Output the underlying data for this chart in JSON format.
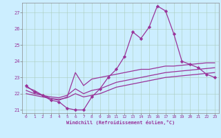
{
  "xlabel": "Windchill (Refroidissement éolien,°C)",
  "background_color": "#cceeff",
  "grid_color": "#aaccbb",
  "line_color": "#993399",
  "xlim_min": -0.5,
  "xlim_max": 23.5,
  "ylim_min": 20.8,
  "ylim_max": 27.6,
  "yticks": [
    21,
    22,
    23,
    24,
    25,
    26,
    27
  ],
  "xticks": [
    0,
    1,
    2,
    3,
    4,
    5,
    6,
    7,
    8,
    9,
    10,
    11,
    12,
    13,
    14,
    15,
    16,
    17,
    18,
    19,
    20,
    21,
    22,
    23
  ],
  "series1_x": [
    0,
    1,
    2,
    3,
    4,
    5,
    6,
    7,
    8,
    9,
    10,
    11,
    12,
    13,
    14,
    15,
    16,
    17,
    18,
    19,
    20,
    21,
    22,
    23
  ],
  "series1_y": [
    22.5,
    22.1,
    21.9,
    21.6,
    21.5,
    21.1,
    21.0,
    21.0,
    21.8,
    22.3,
    23.0,
    23.5,
    24.3,
    25.8,
    25.4,
    26.1,
    27.4,
    27.1,
    25.7,
    24.0,
    23.8,
    23.6,
    23.2,
    23.0
  ],
  "series2_x": [
    0,
    1,
    2,
    3,
    4,
    5,
    6,
    7,
    8,
    9,
    10,
    11,
    12,
    13,
    14,
    15,
    16,
    17,
    18,
    19,
    20,
    21,
    22,
    23
  ],
  "series2_y": [
    22.4,
    22.2,
    21.9,
    21.7,
    21.6,
    21.8,
    23.3,
    22.5,
    22.9,
    23.0,
    23.1,
    23.2,
    23.3,
    23.4,
    23.5,
    23.5,
    23.6,
    23.7,
    23.7,
    23.75,
    23.8,
    23.85,
    23.9,
    23.9
  ],
  "series3_x": [
    0,
    1,
    2,
    3,
    4,
    5,
    6,
    7,
    8,
    9,
    10,
    11,
    12,
    13,
    14,
    15,
    16,
    17,
    18,
    19,
    20,
    21,
    22,
    23
  ],
  "series3_y": [
    22.2,
    22.0,
    21.9,
    21.8,
    21.75,
    21.9,
    22.3,
    22.0,
    22.2,
    22.3,
    22.5,
    22.7,
    22.8,
    22.9,
    23.0,
    23.1,
    23.2,
    23.3,
    23.35,
    23.4,
    23.45,
    23.5,
    23.55,
    23.6
  ],
  "series4_x": [
    0,
    1,
    2,
    3,
    4,
    5,
    6,
    7,
    8,
    9,
    10,
    11,
    12,
    13,
    14,
    15,
    16,
    17,
    18,
    19,
    20,
    21,
    22,
    23
  ],
  "series4_y": [
    22.0,
    21.9,
    21.8,
    21.7,
    21.65,
    21.75,
    22.0,
    21.8,
    21.9,
    22.0,
    22.2,
    22.4,
    22.5,
    22.6,
    22.7,
    22.8,
    22.9,
    23.0,
    23.05,
    23.1,
    23.15,
    23.2,
    23.25,
    23.3
  ]
}
